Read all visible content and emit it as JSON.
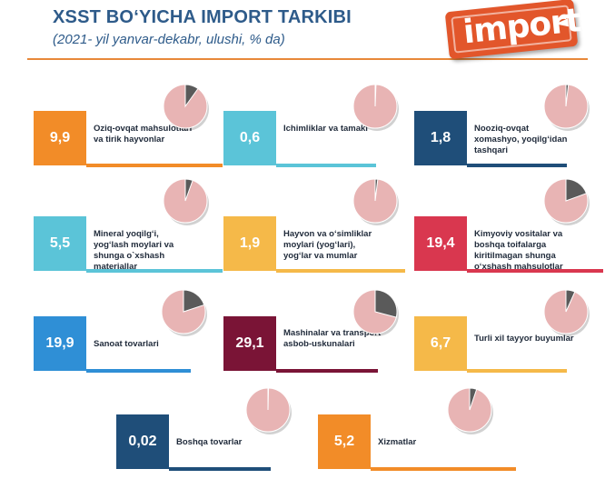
{
  "header": {
    "title": "XSST BO‘YICHA IMPORT TARKIBI",
    "subtitle": "(2021- yil yanvar-dekabr, ulushi, % da)"
  },
  "logo": {
    "text": "import",
    "icon": "arrow-left-icon"
  },
  "colors": {
    "orange": "#f28c28",
    "light_blue": "#5bc4d8",
    "navy": "#1f4e79",
    "red": "#d9374f",
    "yellow": "#f5b949",
    "blue": "#2f8fd6",
    "maroon": "#7a1436",
    "pie_base": "#e8b4b4",
    "pie_slice": "#5a5a5a",
    "accent_rule": "#e8883a"
  },
  "chart_data": {
    "type": "pie",
    "unit": "%",
    "items": [
      {
        "value_label": "9,9",
        "value": 9.9,
        "label": "Oziq-ovqat mahsulotlari va tirik hayvonlar",
        "color": "orange"
      },
      {
        "value_label": "0,6",
        "value": 0.6,
        "label": "Ichimliklar va tamaki",
        "color": "light_blue"
      },
      {
        "value_label": "1,8",
        "value": 1.8,
        "label": "Nooziq-ovqat xomashyo, yoqilg‘idan tashqari",
        "color": "navy"
      },
      {
        "value_label": "5,5",
        "value": 5.5,
        "label": "Mineral yoqilg‘i, yog‘lash moylari va shunga o`xshash materiallar",
        "color": "light_blue"
      },
      {
        "value_label": "1,9",
        "value": 1.9,
        "label": "Hayvon va o‘simliklar moylari (yog‘lari), yog‘lar va mumlar",
        "color": "yellow"
      },
      {
        "value_label": "19,4",
        "value": 19.4,
        "label": "Kimyoviy vositalar va boshqa toifalarga kiritilmagan shunga o‘xshash mahsulotlar",
        "color": "red"
      },
      {
        "value_label": "19,9",
        "value": 19.9,
        "label": "Sanoat tovarlari",
        "color": "blue"
      },
      {
        "value_label": "29,1",
        "value": 29.1,
        "label": "Mashinalar va transport asbob-uskunalari",
        "color": "maroon"
      },
      {
        "value_label": "6,7",
        "value": 6.7,
        "label": "Turli xil tayyor buyumlar",
        "color": "yellow"
      },
      {
        "value_label": "0,02",
        "value": 0.02,
        "label": "Boshqa tovarlar",
        "color": "navy"
      },
      {
        "value_label": "5,2",
        "value": 5.2,
        "label": "Xizmatlar",
        "color": "orange"
      }
    ]
  }
}
